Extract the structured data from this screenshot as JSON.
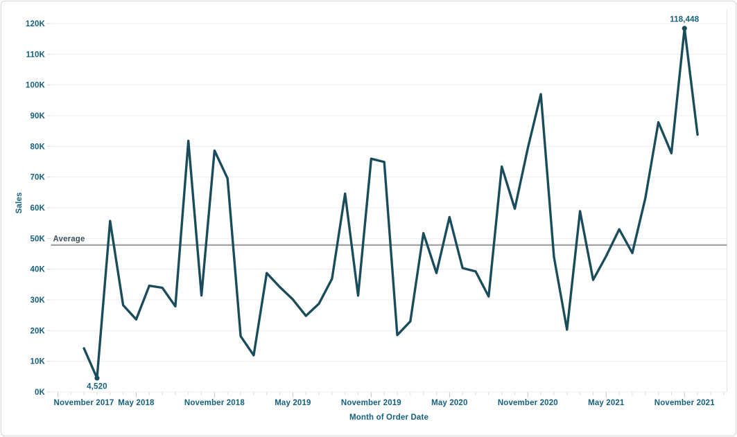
{
  "chart_data": {
    "type": "line",
    "title": "",
    "xlabel": "Month of Order Date",
    "ylabel": "Sales",
    "series_name": "Sales",
    "x": [
      "Jan 2018",
      "Feb 2018",
      "Mar 2018",
      "Apr 2018",
      "May 2018",
      "Jun 2018",
      "Jul 2018",
      "Aug 2018",
      "Sep 2018",
      "Oct 2018",
      "Nov 2018",
      "Dec 2018",
      "Jan 2019",
      "Feb 2019",
      "Mar 2019",
      "Apr 2019",
      "May 2019",
      "Jun 2019",
      "Jul 2019",
      "Aug 2019",
      "Sep 2019",
      "Oct 2019",
      "Nov 2019",
      "Dec 2019",
      "Jan 2020",
      "Feb 2020",
      "Mar 2020",
      "Apr 2020",
      "May 2020",
      "Jun 2020",
      "Jul 2020",
      "Aug 2020",
      "Sep 2020",
      "Oct 2020",
      "Nov 2020",
      "Dec 2020",
      "Jan 2021",
      "Feb 2021",
      "Mar 2021",
      "Apr 2021",
      "May 2021",
      "Jun 2021",
      "Jul 2021",
      "Aug 2021",
      "Sep 2021",
      "Oct 2021",
      "Nov 2021",
      "Dec 2021"
    ],
    "values": [
      14237,
      4520,
      55691,
      28295,
      23648,
      34595,
      33946,
      27909,
      81777,
      31453,
      78629,
      69545,
      18174,
      11951,
      38726,
      34195,
      30131,
      24797,
      28765,
      36898,
      64595,
      31404,
      75973,
      74920,
      18542,
      22978,
      51716,
      38750,
      56988,
      40344,
      39262,
      31115,
      73410,
      59687,
      79412,
      96999,
      43971,
      20301,
      58872,
      36522,
      44261,
      52982,
      45264,
      63121,
      87867,
      77777,
      118448,
      83829
    ],
    "ylim": [
      0,
      120000
    ],
    "ytick_step": 10000,
    "ytick_labels": [
      "0K",
      "10K",
      "20K",
      "30K",
      "40K",
      "50K",
      "60K",
      "70K",
      "80K",
      "90K",
      "100K",
      "110K",
      "120K"
    ],
    "xtick_labels": [
      {
        "label": "November 2017",
        "month_index": -2
      },
      {
        "label": "May 2018",
        "month_index": 4
      },
      {
        "label": "November 2018",
        "month_index": 10
      },
      {
        "label": "May 2019",
        "month_index": 16
      },
      {
        "label": "November 2019",
        "month_index": 22
      },
      {
        "label": "May 2020",
        "month_index": 28
      },
      {
        "label": "November 2020",
        "month_index": 34
      },
      {
        "label": "May 2021",
        "month_index": 40
      },
      {
        "label": "November 2021",
        "month_index": 46
      }
    ],
    "grid": "horizontal",
    "legend": "none",
    "reference_line": {
      "label": "Average",
      "value": 47858
    },
    "annotations": [
      {
        "text": "4,520",
        "month": "Feb 2018",
        "month_index": 1,
        "value": 4520,
        "placement": "below"
      },
      {
        "text": "118,448",
        "month": "Nov 2021",
        "month_index": 46,
        "value": 118448,
        "placement": "above"
      }
    ],
    "colors": {
      "line": "#1a4c5b",
      "marker": "#1a4c5b",
      "axis_text": "#15607f",
      "reference_line": "#a6a6a6",
      "reference_label": "#3e4e57",
      "gridline": "#ededed",
      "pane_border": "#e4e4e4",
      "tick_minor": "#d8d8d8",
      "tick_major": "#c4c4c4",
      "background": "#ffffff",
      "card_border": "#d9d9d9"
    }
  }
}
